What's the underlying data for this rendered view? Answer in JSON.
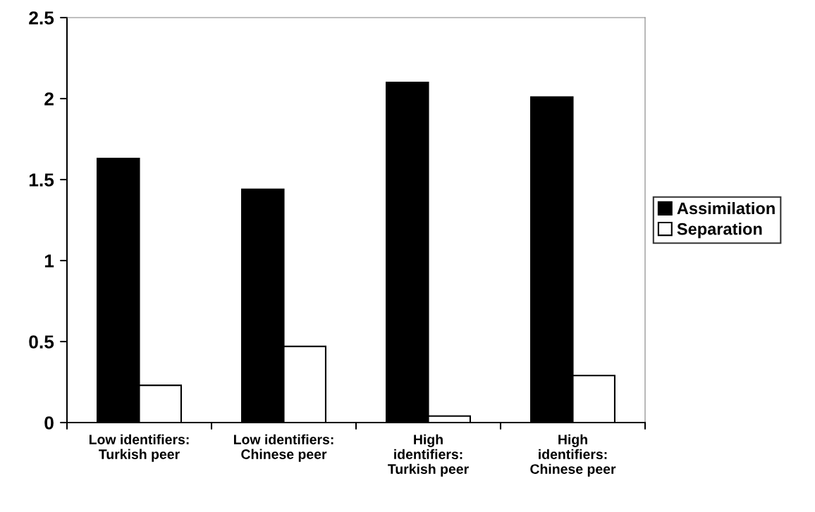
{
  "chart_data": {
    "type": "bar",
    "categories": [
      "Low identifiers:\nTurkish peer",
      "Low identifiers:\nChinese peer",
      "High\nidentifiers:\nTurkish peer",
      "High\nidentifiers:\nChinese peer"
    ],
    "series": [
      {
        "name": "Assimilation",
        "color": "#000000",
        "values": [
          1.63,
          1.44,
          2.1,
          2.01
        ]
      },
      {
        "name": "Separation",
        "color": "#ffffff",
        "values": [
          0.23,
          0.47,
          0.04,
          0.29
        ]
      }
    ],
    "ylim": [
      0,
      2.5
    ],
    "yticks": [
      0,
      0.5,
      1,
      1.5,
      2,
      2.5
    ],
    "grid": false,
    "legend": "right"
  }
}
